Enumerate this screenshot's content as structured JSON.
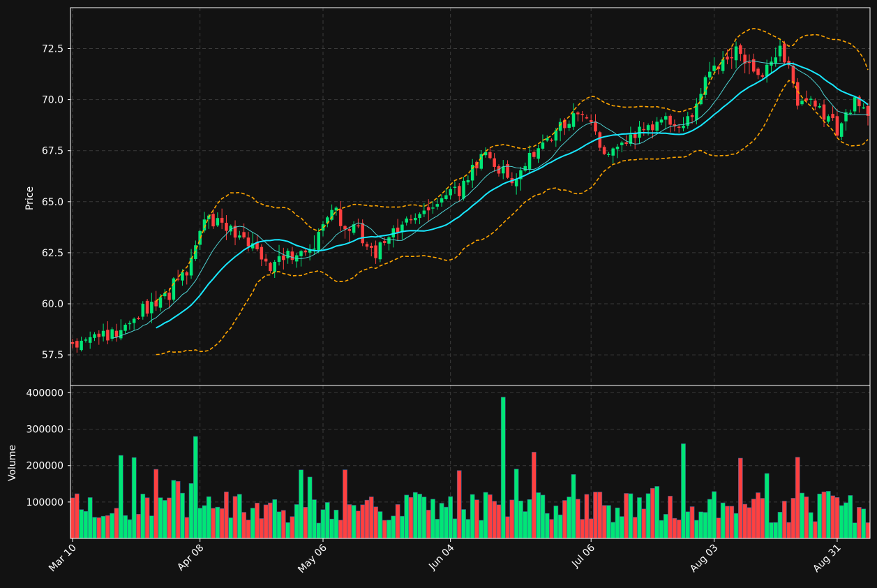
{
  "chart_data": {
    "type": "candlestick",
    "panels": [
      {
        "name": "price",
        "ylabel": "Price",
        "ylim": [
          56.0,
          74.5
        ],
        "yticks": [
          57.5,
          60.0,
          62.5,
          65.0,
          67.5,
          70.0,
          72.5
        ],
        "ytick_labels": [
          "57.5",
          "60.0",
          "62.5",
          "65.0",
          "67.5",
          "70.0",
          "72.5"
        ]
      },
      {
        "name": "volume",
        "ylabel": "Volume",
        "ylim": [
          0,
          420000
        ],
        "yticks": [
          100000,
          200000,
          300000,
          400000
        ],
        "ytick_labels": [
          "100000",
          "200000",
          "300000",
          "400000"
        ]
      }
    ],
    "xtick_labels": [
      {
        "date": "2025-03-10",
        "label": "Mar 10"
      },
      {
        "date": "2025-04-08",
        "label": "Apr 08"
      },
      {
        "date": "2025-05-06",
        "label": "May 06"
      },
      {
        "date": "2025-06-04",
        "label": "Jun 04"
      },
      {
        "date": "2025-07-06",
        "label": "Jul 06"
      },
      {
        "date": "2025-08-03",
        "label": "Aug 03"
      },
      {
        "date": "2025-08-31",
        "label": "Aug 31"
      }
    ],
    "xlim": [
      "2025-03-10",
      "2025-09-07"
    ],
    "grid": true,
    "colors": {
      "up": "#00e676",
      "down": "#ff4040",
      "ma_fast": "#4dd0d0",
      "ma_slow": "#18e8ff",
      "bands": "#ffa500",
      "background": "#121212"
    },
    "price_keys": [
      [
        "2025-03-10",
        58.0
      ],
      [
        "2025-03-20",
        58.6
      ],
      [
        "2025-03-31",
        60.4
      ],
      [
        "2025-04-05",
        61.5
      ],
      [
        "2025-04-09",
        64.2
      ],
      [
        "2025-04-18",
        63.2
      ],
      [
        "2025-04-24",
        61.8
      ],
      [
        "2025-05-02",
        62.6
      ],
      [
        "2025-05-08",
        64.5
      ],
      [
        "2025-05-18",
        62.6
      ],
      [
        "2025-05-28",
        64.6
      ],
      [
        "2025-06-06",
        65.8
      ],
      [
        "2025-06-12",
        67.5
      ],
      [
        "2025-06-18",
        65.8
      ],
      [
        "2025-06-26",
        68.3
      ],
      [
        "2025-07-04",
        69.4
      ],
      [
        "2025-07-09",
        67.3
      ],
      [
        "2025-07-15",
        68.4
      ],
      [
        "2025-07-23",
        69.0
      ],
      [
        "2025-07-27",
        68.6
      ],
      [
        "2025-08-02",
        71.2
      ],
      [
        "2025-08-08",
        72.3
      ],
      [
        "2025-08-14",
        71.2
      ],
      [
        "2025-08-18",
        72.6
      ],
      [
        "2025-08-22",
        70.1
      ],
      [
        "2025-08-26",
        69.6
      ],
      [
        "2025-08-31",
        68.4
      ],
      [
        "2025-09-04",
        70.0
      ],
      [
        "2025-09-07",
        69.2
      ]
    ],
    "volume_spikes": [
      {
        "date": "2025-03-21",
        "value": 228000
      },
      {
        "date": "2025-03-24",
        "value": 222000
      },
      {
        "date": "2025-04-07",
        "value": 280000
      },
      {
        "date": "2025-06-16",
        "value": 388000
      },
      {
        "date": "2025-06-23",
        "value": 237000
      },
      {
        "date": "2025-07-27",
        "value": 260000
      }
    ],
    "ma_fast_window": 10,
    "ma_slow_window": 20,
    "band_std": 2
  }
}
